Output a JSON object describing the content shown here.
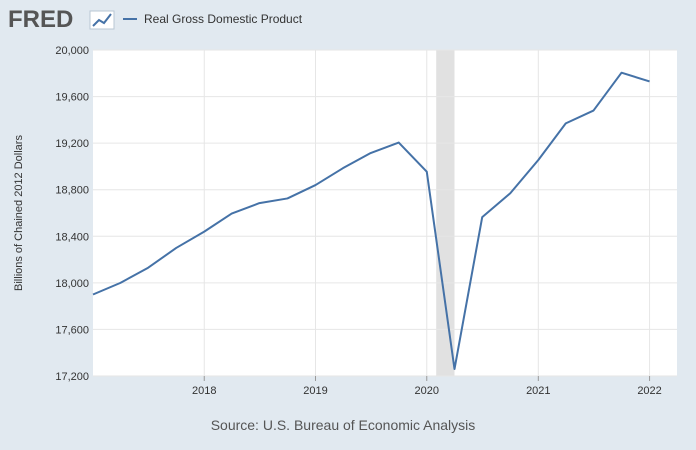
{
  "brand": {
    "logo_text": "FRED",
    "logo_icon": "fred-trend-icon"
  },
  "colors": {
    "background": "#e1e9f0",
    "plot_background": "#ffffff",
    "series": "#4572a7",
    "recession": "#e1e1e1",
    "gridline": "#e6e6e6"
  },
  "chart_data": {
    "type": "line",
    "title": "",
    "xlabel": "",
    "ylabel": "Billions of Chained 2012 Dollars",
    "ylim": [
      17200,
      20000
    ],
    "xlim": [
      "2017-01-01",
      "2022-04-01"
    ],
    "grid": true,
    "legend_position": "top-left",
    "y_ticks": [
      17200,
      17600,
      18000,
      18400,
      18800,
      19200,
      19600,
      20000
    ],
    "y_tick_labels": [
      "17,200",
      "17,600",
      "18,000",
      "18,400",
      "18,800",
      "19,200",
      "19,600",
      "20,000"
    ],
    "x_ticks": [
      "2018-01-01",
      "2019-01-01",
      "2020-01-01",
      "2021-01-01",
      "2022-01-01"
    ],
    "x_tick_labels": [
      "2018",
      "2019",
      "2020",
      "2021",
      "2022"
    ],
    "recessions": [
      {
        "start": "2020-02-01",
        "end": "2020-04-01"
      }
    ],
    "series": [
      {
        "name": "Real Gross Domestic Product",
        "x": [
          "2017-01-01",
          "2017-04-01",
          "2017-07-01",
          "2017-10-01",
          "2018-01-01",
          "2018-04-01",
          "2018-07-01",
          "2018-10-01",
          "2019-01-01",
          "2019-04-01",
          "2019-07-01",
          "2019-10-01",
          "2020-01-01",
          "2020-04-01",
          "2020-07-01",
          "2020-10-01",
          "2021-01-01",
          "2021-04-01",
          "2021-07-01",
          "2021-10-01",
          "2022-01-01"
        ],
        "values": [
          17900,
          18000,
          18130,
          18300,
          18440,
          18595,
          18685,
          18725,
          18840,
          18985,
          19115,
          19205,
          18955,
          17260,
          18565,
          18770,
          19055,
          19370,
          19480,
          19805,
          19730
        ]
      }
    ],
    "source": "Source: U.S. Bureau of Economic Analysis"
  }
}
